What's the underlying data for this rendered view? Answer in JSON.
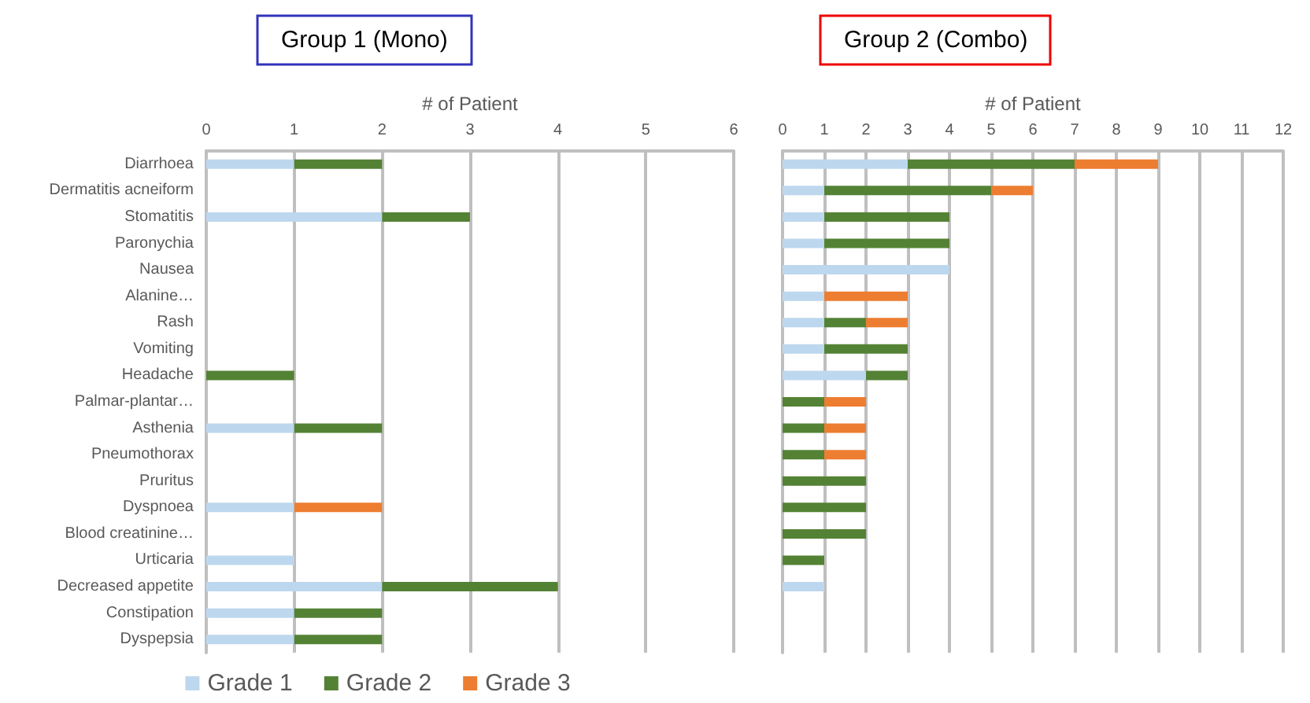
{
  "chart_data": [
    {
      "type": "bar",
      "orientation": "horizontal",
      "stacked": true,
      "title": "Group 1 (Mono)",
      "xlabel": "# of Patient",
      "categories": [
        "Diarrhoea",
        "Dermatitis acneiform",
        "Stomatitis",
        "Paronychia",
        "Nausea",
        "Alanine…",
        "Rash",
        "Vomiting",
        "Headache",
        "Palmar-plantar…",
        "Asthenia",
        "Pneumothorax",
        "Pruritus",
        "Dyspnoea",
        "Blood creatinine…",
        "Urticaria",
        "Decreased appetite",
        "Constipation",
        "Dyspepsia"
      ],
      "series": [
        {
          "name": "Grade 1",
          "color": "#bdd7ee",
          "values": [
            1,
            null,
            2,
            null,
            null,
            null,
            null,
            null,
            null,
            null,
            1,
            null,
            null,
            1,
            null,
            1,
            2,
            1,
            1
          ]
        },
        {
          "name": "Grade 2",
          "color": "#548235",
          "values": [
            1,
            null,
            1,
            null,
            null,
            null,
            null,
            null,
            1,
            null,
            1,
            null,
            null,
            null,
            null,
            null,
            2,
            1,
            1
          ]
        },
        {
          "name": "Grade 3",
          "color": "#ed7d31",
          "values": [
            null,
            null,
            null,
            null,
            null,
            null,
            null,
            null,
            null,
            null,
            null,
            null,
            null,
            1,
            null,
            null,
            null,
            null,
            null
          ]
        }
      ],
      "xlim": [
        0,
        6
      ],
      "xticks": [
        0,
        1,
        2,
        3,
        4,
        5,
        6
      ],
      "grid": "x",
      "legend": "bottom"
    },
    {
      "type": "bar",
      "orientation": "horizontal",
      "stacked": true,
      "title": "Group 2 (Combo)",
      "xlabel": "# of Patient",
      "categories": [
        null,
        null,
        null,
        null,
        null,
        null,
        null,
        null,
        null,
        null,
        null,
        null,
        null,
        null,
        null,
        null,
        null,
        null,
        null
      ],
      "series": [
        {
          "color": "#bdd7ee",
          "values": [
            3,
            1,
            1,
            1,
            4,
            1,
            1,
            1,
            2,
            null,
            null,
            null,
            null,
            null,
            null,
            null,
            1,
            null,
            null
          ]
        },
        {
          "color": "#548235",
          "values": [
            4,
            4,
            3,
            3,
            null,
            null,
            1,
            2,
            1,
            1,
            1,
            1,
            2,
            2,
            2,
            1,
            null,
            null,
            null
          ]
        },
        {
          "color": "#ed7d31",
          "values": [
            2,
            1,
            null,
            null,
            null,
            2,
            1,
            null,
            null,
            1,
            1,
            1,
            null,
            null,
            null,
            null,
            null,
            null,
            null
          ]
        }
      ],
      "xlim": [
        0,
        12
      ],
      "xticks": [
        0,
        1,
        2,
        3,
        4,
        5,
        6,
        7,
        8,
        9,
        10,
        11,
        12
      ],
      "grid": "x",
      "tick_labels": "x",
      "legend": false
    }
  ]
}
